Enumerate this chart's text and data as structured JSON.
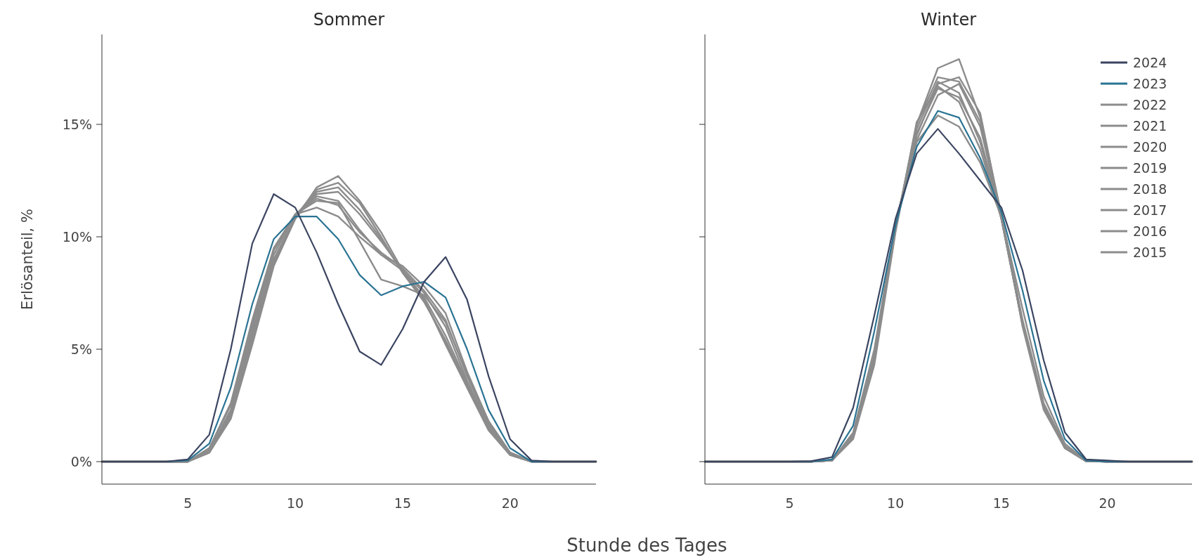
{
  "chart_data": [
    {
      "type": "line",
      "title": "Sommer",
      "ylabel": "Erlösanteil, %",
      "xlabel": "Stunde des Tages",
      "x": [
        1,
        2,
        3,
        4,
        5,
        6,
        7,
        8,
        9,
        10,
        11,
        12,
        13,
        14,
        15,
        16,
        17,
        18,
        19,
        20,
        21,
        22,
        23,
        24
      ],
      "xlim": [
        1,
        24
      ],
      "xticks": [
        5,
        10,
        15,
        20
      ],
      "ylim": [
        -1,
        19
      ],
      "yticks": [
        {
          "value": 0,
          "label": "0%"
        },
        {
          "value": 5,
          "label": "5%"
        },
        {
          "value": 10,
          "label": "10%"
        },
        {
          "value": 15,
          "label": "15%"
        }
      ],
      "legend": false,
      "series": [
        {
          "color": "#3b4561",
          "values": [
            0,
            0,
            0,
            0,
            0.1,
            1.2,
            5.0,
            9.7,
            11.9,
            11.3,
            9.3,
            7.0,
            4.9,
            4.3,
            5.9,
            8.0,
            9.1,
            7.2,
            3.8,
            1.0,
            0.05,
            0,
            0,
            0
          ]
        },
        {
          "color": "#2a7393",
          "values": [
            null,
            null,
            0,
            0,
            0.05,
            0.8,
            3.3,
            7.0,
            9.9,
            10.9,
            10.9,
            9.9,
            8.3,
            7.4,
            7.8,
            8.0,
            7.3,
            5.0,
            2.3,
            0.6,
            0,
            0,
            0,
            0
          ]
        },
        {
          "color": "#8c8c8c",
          "values": [
            0,
            0,
            0,
            0,
            0,
            0.4,
            1.9,
            5.2,
            8.7,
            10.8,
            12.2,
            12.7,
            11.6,
            10.2,
            8.5,
            7.2,
            5.2,
            3.3,
            1.4,
            0.3,
            0,
            0,
            0,
            0
          ]
        },
        {
          "color": "#8c8c8c",
          "values": [
            0,
            0,
            0,
            0,
            0,
            0.4,
            2.0,
            5.4,
            8.9,
            10.9,
            12.1,
            12.4,
            11.5,
            10.0,
            8.4,
            7.1,
            5.4,
            3.4,
            1.5,
            0.3,
            0,
            0,
            0,
            0
          ]
        },
        {
          "color": "#8c8c8c",
          "values": [
            0,
            0,
            0,
            0,
            0,
            0.5,
            2.2,
            5.8,
            9.2,
            11.0,
            11.8,
            11.6,
            10.3,
            9.2,
            8.7,
            7.8,
            6.6,
            4.0,
            1.8,
            0.4,
            0,
            0,
            0,
            0
          ]
        },
        {
          "color": "#8c8c8c",
          "values": [
            0,
            0,
            0,
            0,
            0,
            0.5,
            2.3,
            6.0,
            9.4,
            11.0,
            11.7,
            11.4,
            10.2,
            9.3,
            8.6,
            7.6,
            6.3,
            3.8,
            1.7,
            0.4,
            0,
            0,
            0,
            0
          ]
        },
        {
          "color": "#8c8c8c",
          "values": [
            0,
            0,
            0,
            0,
            0,
            0.6,
            2.6,
            6.3,
            9.5,
            11.0,
            11.3,
            10.9,
            10.0,
            9.2,
            8.5,
            7.5,
            6.0,
            3.6,
            1.6,
            0.4,
            0,
            0,
            0,
            0
          ]
        },
        {
          "color": "#8c8c8c",
          "values": [
            0,
            0,
            0,
            0,
            0,
            0.6,
            2.5,
            6.2,
            9.4,
            11.0,
            11.6,
            11.5,
            9.8,
            8.1,
            7.8,
            7.4,
            6.2,
            3.9,
            1.8,
            0.4,
            0,
            0,
            0,
            0
          ]
        },
        {
          "color": "#8c8c8c",
          "values": [
            0,
            0,
            0,
            0,
            0,
            0.4,
            2.0,
            5.3,
            8.8,
            10.8,
            12.0,
            12.2,
            11.2,
            9.9,
            8.4,
            7.2,
            5.3,
            3.3,
            1.4,
            0.3,
            0,
            0,
            0,
            0
          ]
        },
        {
          "color": "#8c8c8c",
          "values": [
            0,
            0,
            0,
            0,
            0,
            0.5,
            2.1,
            5.6,
            9.0,
            10.9,
            11.9,
            12.0,
            11.0,
            9.8,
            8.5,
            7.3,
            5.6,
            3.5,
            1.5,
            0.3,
            0,
            0,
            0,
            0
          ]
        }
      ]
    },
    {
      "type": "line",
      "title": "Winter",
      "x": [
        1,
        2,
        3,
        4,
        5,
        6,
        7,
        8,
        9,
        10,
        11,
        12,
        13,
        14,
        15,
        16,
        17,
        18,
        19,
        20,
        21,
        22,
        23,
        24
      ],
      "xlim": [
        1,
        24
      ],
      "xticks": [
        5,
        10,
        15,
        20
      ],
      "ylim": [
        -1,
        19
      ],
      "yticks": [
        {
          "value": 0,
          "label": null
        },
        {
          "value": 5,
          "label": null
        },
        {
          "value": 10,
          "label": null
        },
        {
          "value": 15,
          "label": null
        }
      ],
      "tick_labels": "x",
      "legend": "top right",
      "series": [
        {
          "name": "2024",
          "color": "#3b4561",
          "values": [
            0,
            0,
            0,
            0,
            0,
            0.02,
            0.2,
            2.4,
            6.5,
            10.8,
            13.7,
            14.8,
            13.7,
            12.5,
            11.3,
            8.5,
            4.5,
            1.3,
            0.1,
            0.05,
            0,
            0,
            0,
            0
          ]
        },
        {
          "name": "2023",
          "color": "#2a7393",
          "values": [
            null,
            null,
            null,
            0,
            0,
            0,
            0.1,
            1.6,
            5.8,
            10.5,
            14.0,
            15.6,
            15.3,
            13.5,
            11.1,
            7.6,
            3.6,
            1.0,
            0.05,
            0,
            0,
            0,
            null,
            null
          ]
        },
        {
          "name": "2022",
          "color": "#8c8c8c",
          "values": [
            0,
            0,
            0,
            0,
            0,
            0,
            0.05,
            1.0,
            4.3,
            10.2,
            15.0,
            17.5,
            17.9,
            15.3,
            11.0,
            6.0,
            2.3,
            0.6,
            0.02,
            0,
            0,
            0,
            0,
            0
          ]
        },
        {
          "name": "2021",
          "color": "#8c8c8c",
          "values": [
            0,
            0,
            0,
            0,
            0,
            0,
            0.05,
            1.1,
            4.5,
            10.4,
            15.0,
            17.1,
            16.9,
            15.1,
            10.8,
            6.1,
            2.4,
            0.6,
            0.02,
            0,
            0,
            0,
            0,
            0
          ]
        },
        {
          "name": "2020",
          "color": "#8c8c8c",
          "values": [
            0,
            0,
            0,
            0,
            0,
            0,
            0.05,
            1.2,
            4.6,
            10.5,
            14.6,
            16.6,
            16.2,
            14.4,
            10.9,
            6.2,
            2.5,
            0.6,
            0.02,
            0,
            0,
            0,
            0,
            0
          ]
        },
        {
          "name": "2019",
          "color": "#8c8c8c",
          "values": [
            0,
            0,
            0,
            0,
            0,
            0,
            0.05,
            1.2,
            4.7,
            10.6,
            14.3,
            16.3,
            16.8,
            14.9,
            10.9,
            6.3,
            2.6,
            0.7,
            0.02,
            0,
            0,
            0,
            0,
            0
          ]
        },
        {
          "name": "2018",
          "color": "#8c8c8c",
          "values": [
            0,
            0,
            0,
            0,
            0,
            0,
            0.05,
            1.3,
            5.0,
            10.6,
            14.2,
            15.4,
            14.9,
            13.3,
            10.9,
            6.8,
            2.9,
            0.8,
            0.03,
            0,
            0,
            0,
            0,
            0
          ]
        },
        {
          "name": "2017",
          "color": "#8c8c8c",
          "values": [
            0,
            0,
            0,
            0,
            0,
            0,
            0.05,
            1.1,
            4.6,
            10.4,
            14.8,
            16.9,
            16.4,
            14.2,
            10.8,
            6.1,
            2.4,
            0.6,
            0.02,
            0,
            0,
            0,
            0,
            0
          ]
        },
        {
          "name": "2016",
          "color": "#8c8c8c",
          "values": [
            0,
            0,
            0,
            0,
            0,
            0,
            0.05,
            1.2,
            4.7,
            10.5,
            14.5,
            16.8,
            17.1,
            15.5,
            10.9,
            6.2,
            2.5,
            0.7,
            0.02,
            0,
            0,
            0,
            0,
            0
          ]
        },
        {
          "name": "2015",
          "color": "#8c8c8c",
          "values": [
            0,
            0,
            0,
            0,
            0,
            0,
            0.05,
            1.1,
            4.5,
            10.3,
            15.1,
            16.7,
            16.0,
            13.9,
            10.8,
            6.1,
            2.4,
            0.6,
            0.02,
            0,
            0,
            0,
            0,
            0
          ]
        }
      ]
    }
  ]
}
